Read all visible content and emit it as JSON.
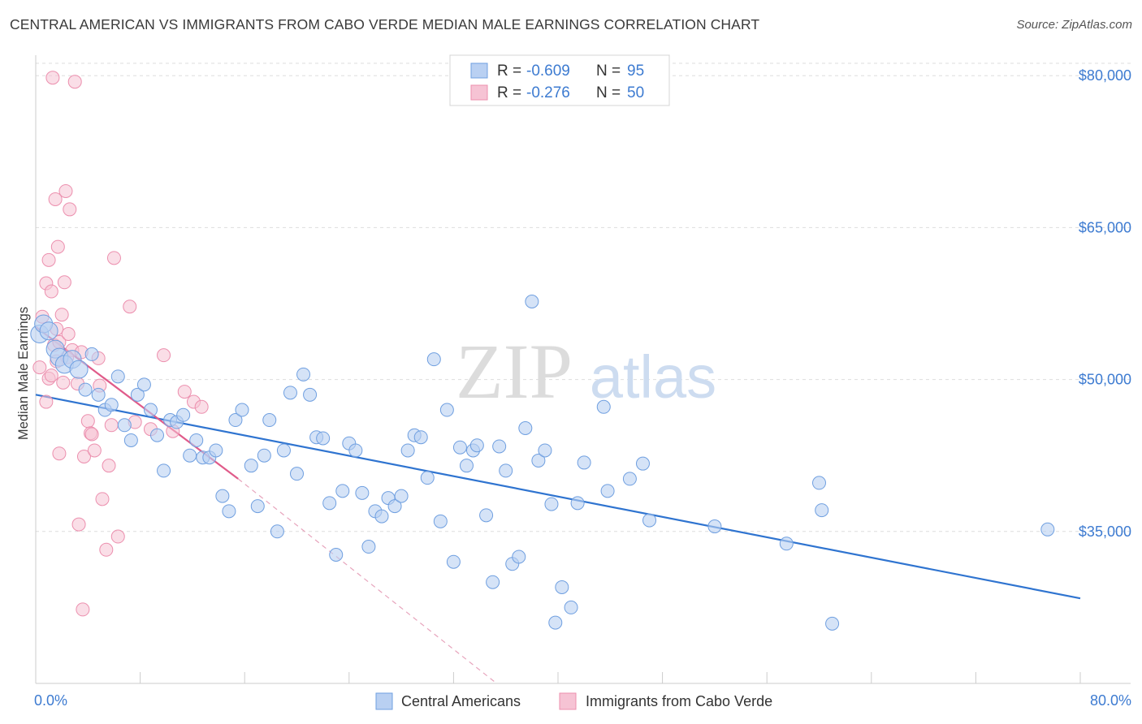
{
  "title": "CENTRAL AMERICAN VS IMMIGRANTS FROM CABO VERDE MEDIAN MALE EARNINGS CORRELATION CHART",
  "source": "Source: ZipAtlas.com",
  "watermark": {
    "part1": "ZIP",
    "part2": "atlas"
  },
  "chart_data": {
    "type": "scatter",
    "title": "CENTRAL AMERICAN VS IMMIGRANTS FROM CABO VERDE MEDIAN MALE EARNINGS CORRELATION CHART",
    "xlabel": "",
    "ylabel": "Median Male Earnings",
    "xlim": [
      0,
      80
    ],
    "ylim": [
      20000,
      82500
    ],
    "x_tick_labels": [
      "0.0%",
      "80.0%"
    ],
    "y_ticks": [
      {
        "value": 35000,
        "label": "$35,000"
      },
      {
        "value": 50000,
        "label": "$50,000"
      },
      {
        "value": 65000,
        "label": "$65,000"
      },
      {
        "value": 80000,
        "label": "$80,000"
      }
    ],
    "legend": {
      "position": "top-center",
      "entries": [
        {
          "r_label": "R =",
          "r_value": "-0.609",
          "n_label": "N =",
          "n_value": "95"
        },
        {
          "r_label": "R =",
          "r_value": "-0.276",
          "n_label": "N =",
          "n_value": "50"
        }
      ]
    },
    "series": [
      {
        "name": "Central Americans",
        "color": "#6f9fe0",
        "fill": "#b9d0f2",
        "line_color": "#2f74d0",
        "trend": {
          "x0": 0,
          "y0": 48500,
          "x1": 80,
          "y1": 28400
        },
        "points": [
          [
            0.3,
            54500,
            1
          ],
          [
            0.6,
            55500,
            1
          ],
          [
            1,
            54800,
            1
          ],
          [
            1.5,
            53000,
            1
          ],
          [
            1.8,
            52200,
            1
          ],
          [
            2.2,
            51500,
            1
          ],
          [
            2.8,
            52000,
            1
          ],
          [
            3.3,
            51000,
            1
          ],
          [
            3.8,
            49000,
            0
          ],
          [
            4.3,
            52500,
            0
          ],
          [
            4.8,
            48500,
            0
          ],
          [
            5.3,
            47000,
            0
          ],
          [
            5.8,
            47500,
            0
          ],
          [
            6.3,
            50300,
            0
          ],
          [
            6.8,
            45500,
            0
          ],
          [
            7.3,
            44000,
            0
          ],
          [
            7.8,
            48500,
            0
          ],
          [
            8.3,
            49500,
            0
          ],
          [
            8.8,
            47000,
            0
          ],
          [
            9.3,
            44500,
            0
          ],
          [
            9.8,
            41000,
            0
          ],
          [
            10.3,
            46000,
            0
          ],
          [
            10.8,
            45800,
            0
          ],
          [
            11.3,
            46500,
            0
          ],
          [
            11.8,
            42500,
            0
          ],
          [
            12.3,
            44000,
            0
          ],
          [
            12.8,
            42300,
            0
          ],
          [
            13.3,
            42300,
            0
          ],
          [
            13.8,
            43000,
            0
          ],
          [
            14.3,
            38500,
            0
          ],
          [
            14.8,
            37000,
            0
          ],
          [
            15.3,
            46000,
            0
          ],
          [
            15.8,
            47000,
            0
          ],
          [
            16.5,
            41500,
            0
          ],
          [
            17,
            37500,
            0
          ],
          [
            17.5,
            42500,
            0
          ],
          [
            17.9,
            46000,
            0
          ],
          [
            18.5,
            35000,
            0
          ],
          [
            19,
            43000,
            0
          ],
          [
            19.5,
            48700,
            0
          ],
          [
            20,
            40700,
            0
          ],
          [
            20.5,
            50500,
            0
          ],
          [
            21,
            48500,
            0
          ],
          [
            21.5,
            44300,
            0
          ],
          [
            22,
            44200,
            0
          ],
          [
            22.5,
            37800,
            0
          ],
          [
            23,
            32700,
            0
          ],
          [
            23.5,
            39000,
            0
          ],
          [
            24,
            43700,
            0
          ],
          [
            24.5,
            43000,
            0
          ],
          [
            25,
            38800,
            0
          ],
          [
            25.5,
            33500,
            0
          ],
          [
            26,
            37000,
            0
          ],
          [
            26.5,
            36500,
            0
          ],
          [
            27,
            38300,
            0
          ],
          [
            27.5,
            37500,
            0
          ],
          [
            28,
            38500,
            0
          ],
          [
            28.5,
            43000,
            0
          ],
          [
            29,
            44500,
            0
          ],
          [
            29.5,
            44300,
            0
          ],
          [
            30,
            40300,
            0
          ],
          [
            30.5,
            52000,
            0
          ],
          [
            31,
            36000,
            0
          ],
          [
            31.5,
            47000,
            0
          ],
          [
            32,
            32000,
            0
          ],
          [
            32.5,
            43300,
            0
          ],
          [
            33,
            41500,
            0
          ],
          [
            33.5,
            43000,
            0
          ],
          [
            33.8,
            43500,
            0
          ],
          [
            34.5,
            36600,
            0
          ],
          [
            35,
            30000,
            0
          ],
          [
            35.5,
            43400,
            0
          ],
          [
            36,
            41000,
            0
          ],
          [
            36.5,
            31800,
            0
          ],
          [
            37,
            32500,
            0
          ],
          [
            37.5,
            45200,
            0
          ],
          [
            38,
            57700,
            0
          ],
          [
            38.5,
            42000,
            0
          ],
          [
            39,
            43000,
            0
          ],
          [
            39.5,
            37700,
            0
          ],
          [
            39.8,
            26000,
            0
          ],
          [
            40.3,
            29500,
            0
          ],
          [
            41,
            27500,
            0
          ],
          [
            41.5,
            37800,
            0
          ],
          [
            42,
            41800,
            0
          ],
          [
            43.5,
            47300,
            0
          ],
          [
            43.8,
            39000,
            0
          ],
          [
            45.5,
            40200,
            0
          ],
          [
            46.5,
            41700,
            0
          ],
          [
            47,
            36100,
            0
          ],
          [
            52,
            35500,
            0
          ],
          [
            57.5,
            33800,
            0
          ],
          [
            60,
            39800,
            0
          ],
          [
            60.2,
            37100,
            0
          ],
          [
            61,
            25900,
            0
          ],
          [
            77.5,
            35200,
            0
          ]
        ]
      },
      {
        "name": "Immigrants from Cabo Verde",
        "color": "#ec8fae",
        "fill": "#f6c3d4",
        "line_color": "#e05b8a",
        "trend": {
          "x0": 0,
          "y0": 55200,
          "x1": 15.5,
          "y1": 40200
        },
        "trend_extension": {
          "x0": 15.5,
          "y0": 40200,
          "x1": 35.3,
          "y1": 20000
        },
        "points": [
          [
            0.3,
            51200
          ],
          [
            0.5,
            56200
          ],
          [
            0.8,
            47800
          ],
          [
            1,
            50100
          ],
          [
            1.2,
            50400
          ],
          [
            1.4,
            53400
          ],
          [
            1.6,
            55000
          ],
          [
            1.8,
            53700
          ],
          [
            0.8,
            59500
          ],
          [
            1,
            61800
          ],
          [
            1.2,
            58700
          ],
          [
            1.5,
            67800
          ],
          [
            1.7,
            63100
          ],
          [
            2,
            56400
          ],
          [
            2.2,
            59600
          ],
          [
            2.5,
            54500
          ],
          [
            2.3,
            68600
          ],
          [
            2.6,
            66800
          ],
          [
            2.8,
            52900
          ],
          [
            3,
            79400
          ],
          [
            3.2,
            49600
          ],
          [
            3.5,
            52700
          ],
          [
            3.7,
            42400
          ],
          [
            4,
            45900
          ],
          [
            4.2,
            44700
          ],
          [
            4.5,
            43000
          ],
          [
            4.8,
            52100
          ],
          [
            5.1,
            38200
          ],
          [
            5.4,
            33200
          ],
          [
            5.6,
            41500
          ],
          [
            6,
            62000
          ],
          [
            6.3,
            34500
          ],
          [
            1.3,
            79800
          ],
          [
            1.8,
            42700
          ],
          [
            2.1,
            49700
          ],
          [
            3.3,
            35700
          ],
          [
            3.6,
            27300
          ],
          [
            4.3,
            44600
          ],
          [
            4.9,
            49400
          ],
          [
            5.8,
            45500
          ],
          [
            7.2,
            57200
          ],
          [
            7.6,
            45800
          ],
          [
            9.8,
            52400
          ],
          [
            10.5,
            44900
          ],
          [
            11.4,
            48800
          ],
          [
            12.1,
            47800
          ],
          [
            12.7,
            47300
          ],
          [
            8.8,
            45100
          ],
          [
            1.6,
            51800
          ],
          [
            2.4,
            52200
          ]
        ]
      }
    ]
  }
}
